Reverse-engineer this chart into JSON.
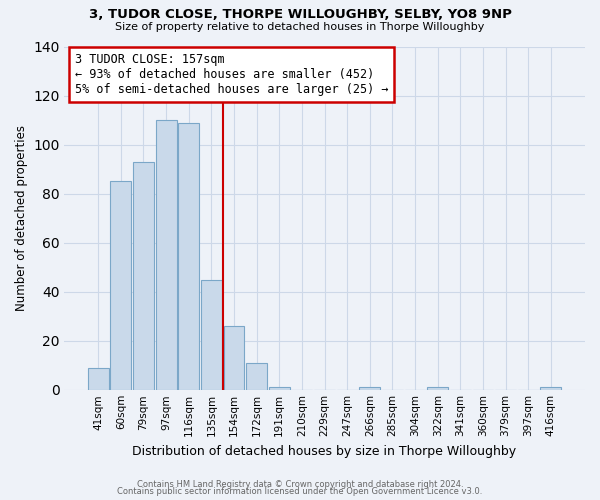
{
  "title": "3, TUDOR CLOSE, THORPE WILLOUGHBY, SELBY, YO8 9NP",
  "subtitle": "Size of property relative to detached houses in Thorpe Willoughby",
  "xlabel": "Distribution of detached houses by size in Thorpe Willoughby",
  "ylabel": "Number of detached properties",
  "bin_labels": [
    "41sqm",
    "60sqm",
    "79sqm",
    "97sqm",
    "116sqm",
    "135sqm",
    "154sqm",
    "172sqm",
    "191sqm",
    "210sqm",
    "229sqm",
    "247sqm",
    "266sqm",
    "285sqm",
    "304sqm",
    "322sqm",
    "341sqm",
    "360sqm",
    "379sqm",
    "397sqm",
    "416sqm"
  ],
  "bar_heights": [
    9,
    85,
    93,
    110,
    109,
    45,
    26,
    11,
    1,
    0,
    0,
    0,
    1,
    0,
    0,
    1,
    0,
    0,
    0,
    0,
    1
  ],
  "bar_color": "#c9d9ea",
  "bar_edge_color": "#7ba7c8",
  "vline_x": 5.5,
  "vline_color": "#cc0000",
  "annotation_text": "3 TUDOR CLOSE: 157sqm\n← 93% of detached houses are smaller (452)\n5% of semi-detached houses are larger (25) →",
  "annotation_box_facecolor": "#ffffff",
  "annotation_box_edgecolor": "#cc0000",
  "grid_color": "#cdd8e8",
  "background_color": "#eef2f8",
  "ylim": [
    0,
    140
  ],
  "footer_line1": "Contains HM Land Registry data © Crown copyright and database right 2024.",
  "footer_line2": "Contains public sector information licensed under the Open Government Licence v3.0."
}
